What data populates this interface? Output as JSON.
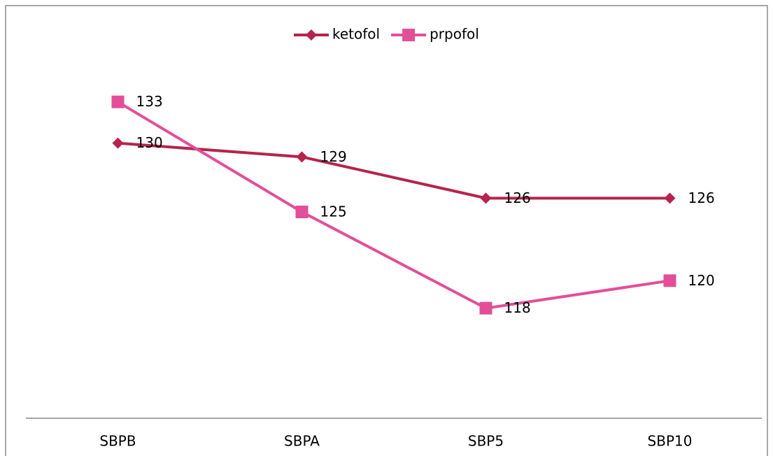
{
  "chart_data": {
    "type": "line",
    "categories": [
      "SBPB",
      "SBPA",
      "SBP5",
      "SBP10"
    ],
    "series": [
      {
        "name": "ketofol",
        "color": "#b5244c",
        "marker": "diamond",
        "values": [
          130,
          129,
          126,
          126
        ]
      },
      {
        "name": "prpofol",
        "color": "#e24f98",
        "marker": "square",
        "values": [
          133,
          125,
          118,
          120
        ]
      }
    ],
    "ylim": [
      110,
      140
    ],
    "legend": "top"
  }
}
